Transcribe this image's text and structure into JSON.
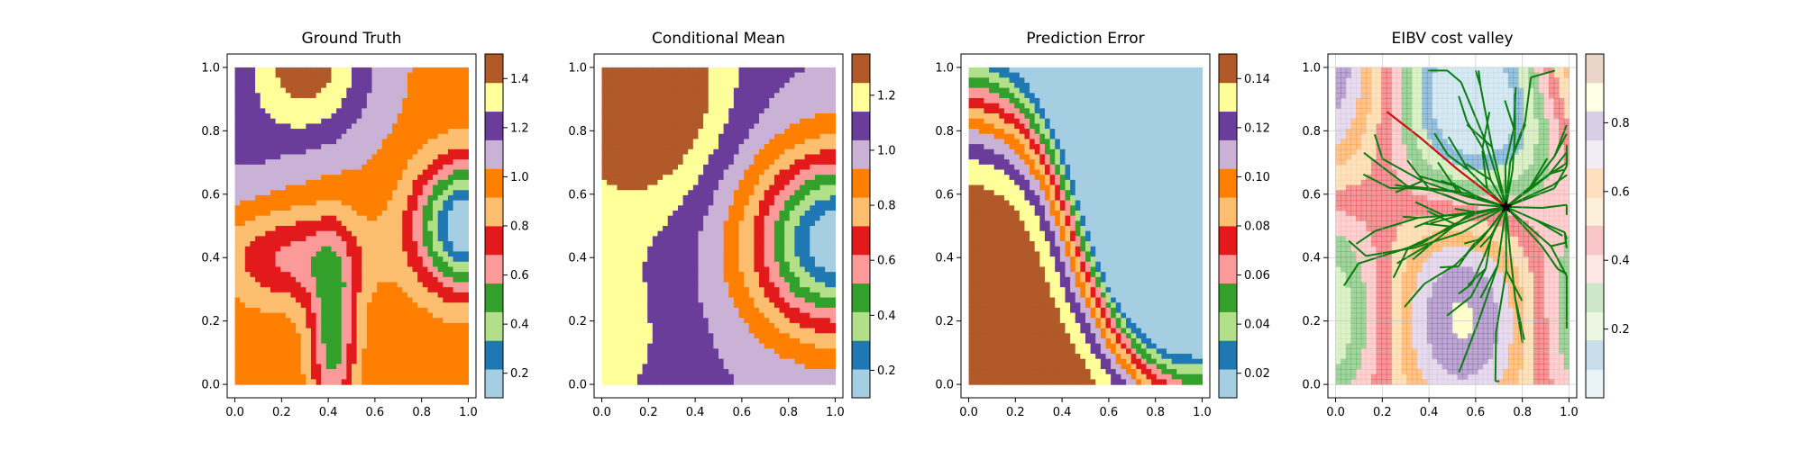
{
  "chart_data": [
    {
      "type": "heatmap",
      "title": "Ground Truth",
      "xlim": [
        0,
        1
      ],
      "ylim": [
        0,
        1
      ],
      "xticks": [
        "0.0",
        "0.2",
        "0.4",
        "0.6",
        "0.8",
        "1.0"
      ],
      "yticks": [
        "0.0",
        "0.2",
        "0.4",
        "0.6",
        "0.8",
        "1.0"
      ],
      "colorbar": {
        "min": 0.1,
        "max": 1.5,
        "ticks": [
          0.2,
          0.4,
          0.6,
          0.8,
          1.0,
          1.2,
          1.4
        ],
        "tick_labels": [
          "0.2",
          "0.4",
          "0.6",
          "0.8",
          "1.0",
          "1.2",
          "1.4"
        ]
      }
    },
    {
      "type": "heatmap",
      "title": "Conditional Mean",
      "xlim": [
        0,
        1
      ],
      "ylim": [
        0,
        1
      ],
      "xticks": [
        "0.0",
        "0.2",
        "0.4",
        "0.6",
        "0.8",
        "1.0"
      ],
      "yticks": [
        "0.0",
        "0.2",
        "0.4",
        "0.6",
        "0.8",
        "1.0"
      ],
      "colorbar": {
        "min": 0.1,
        "max": 1.35,
        "ticks": [
          0.2,
          0.4,
          0.6,
          0.8,
          1.0,
          1.2
        ],
        "tick_labels": [
          "0.2",
          "0.4",
          "0.6",
          "0.8",
          "1.0",
          "1.2"
        ]
      }
    },
    {
      "type": "heatmap",
      "title": "Prediction Error",
      "xlim": [
        0,
        1
      ],
      "ylim": [
        0,
        1
      ],
      "xticks": [
        "0.0",
        "0.2",
        "0.4",
        "0.6",
        "0.8",
        "1.0"
      ],
      "yticks": [
        "0.0",
        "0.2",
        "0.4",
        "0.6",
        "0.8",
        "1.0"
      ],
      "colorbar": {
        "min": 0.01,
        "max": 0.15,
        "ticks": [
          0.02,
          0.04,
          0.06,
          0.08,
          0.1,
          0.12,
          0.14
        ],
        "tick_labels": [
          "0.02",
          "0.04",
          "0.06",
          "0.08",
          "0.10",
          "0.12",
          "0.14"
        ]
      }
    },
    {
      "type": "heatmap",
      "title": "EIBV cost valley",
      "xlim": [
        0,
        1
      ],
      "ylim": [
        0,
        1
      ],
      "xticks": [
        "0.0",
        "0.2",
        "0.4",
        "0.6",
        "0.8",
        "1.0"
      ],
      "yticks": [
        "0.0",
        "0.2",
        "0.4",
        "0.6",
        "0.8",
        "1.0"
      ],
      "colorbar": {
        "min": 0,
        "max": 1,
        "ticks": [
          0.2,
          0.4,
          0.6,
          0.8
        ],
        "tick_labels": [
          "0.2",
          "0.4",
          "0.6",
          "0.8"
        ]
      },
      "current_location": [
        0.73,
        0.56
      ],
      "planned_path": [
        [
          0.73,
          0.56
        ],
        [
          0.52,
          0.68
        ],
        [
          0.36,
          0.78
        ],
        [
          0.22,
          0.86
        ]
      ]
    }
  ],
  "colors": {
    "paired": [
      "#a6cee3",
      "#1f78b4",
      "#b2df8a",
      "#33a02c",
      "#fb9a99",
      "#e31a1c",
      "#fdbf6f",
      "#ff7f00",
      "#cab2d6",
      "#6a3d9a",
      "#ffff99",
      "#b15928"
    ],
    "tree": "#0a7d10",
    "path": "#cc1111",
    "marker": "#000000"
  }
}
